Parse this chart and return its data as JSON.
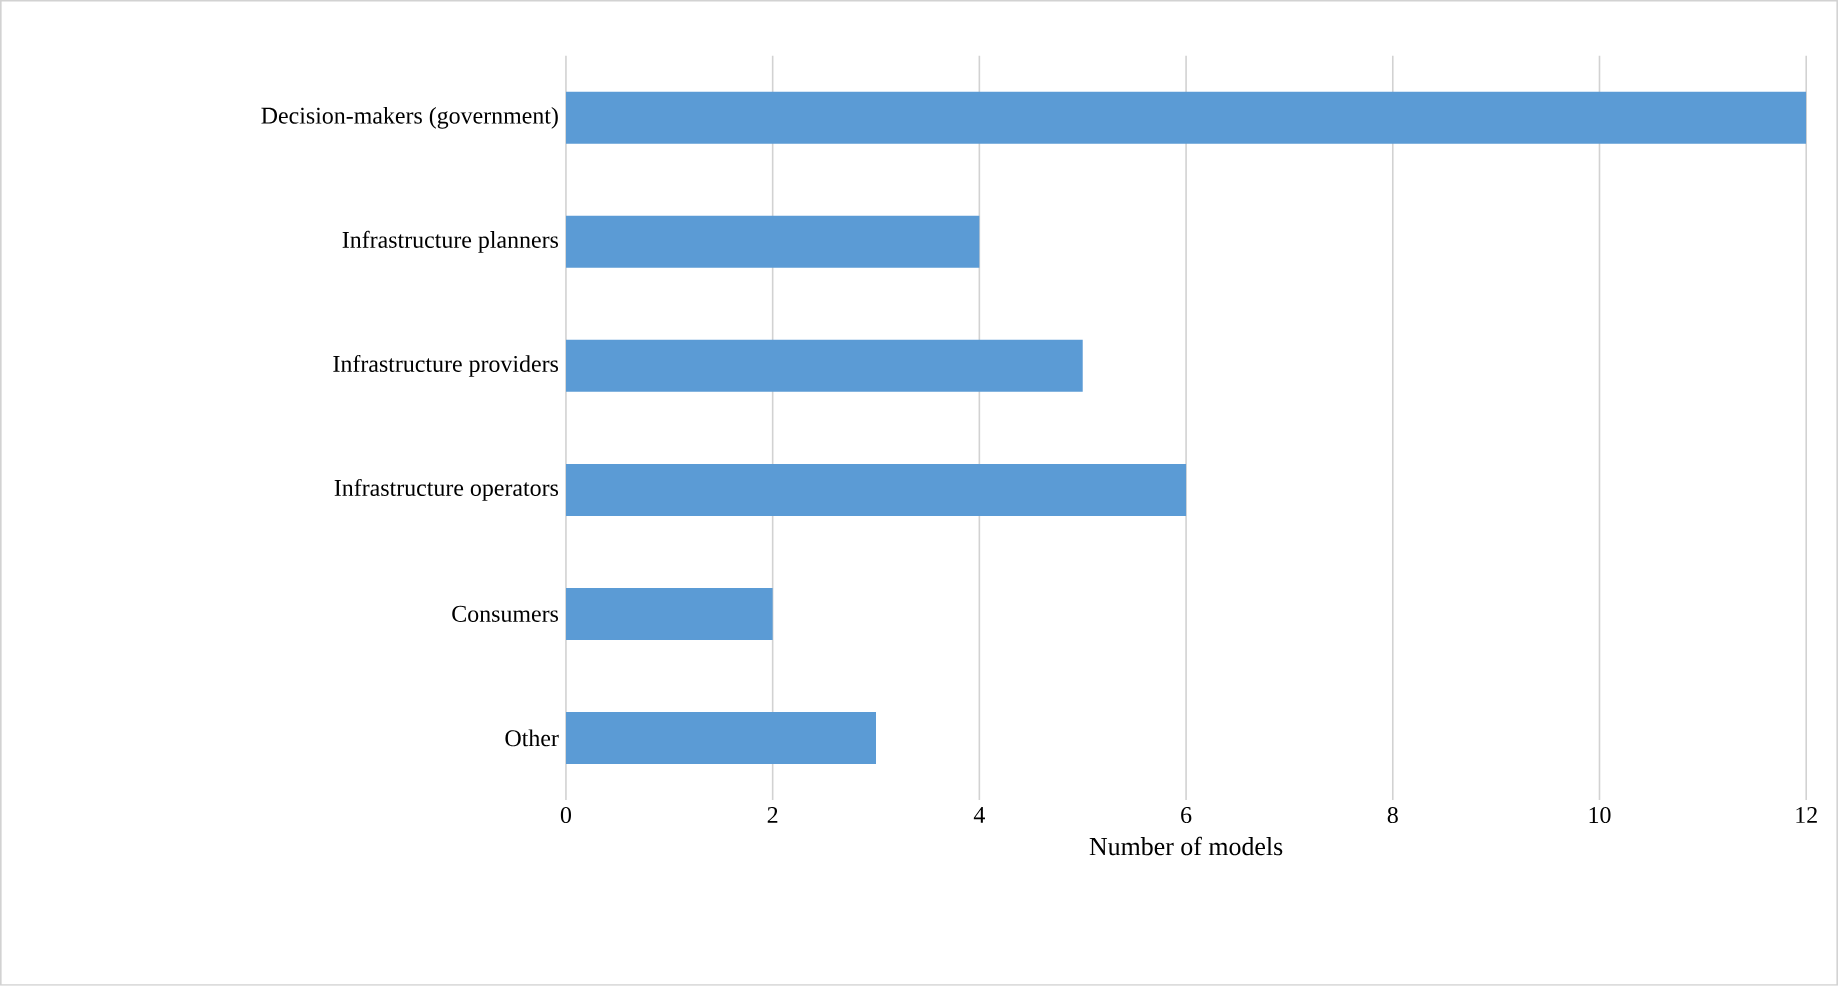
{
  "chart_data": {
    "type": "bar",
    "orientation": "horizontal",
    "xlabel": "Number of models",
    "categories": [
      "Decision-makers (government)",
      "Infrastructure planners",
      "Infrastructure providers",
      "Infrastructure operators",
      "Consumers",
      "Other"
    ],
    "values": [
      12,
      4,
      5,
      6,
      2,
      3
    ],
    "color": "#5b9bd5",
    "xlim": [
      0,
      12
    ],
    "xticks": [
      0,
      2,
      4,
      6,
      8,
      10,
      12
    ],
    "grid": "x"
  }
}
